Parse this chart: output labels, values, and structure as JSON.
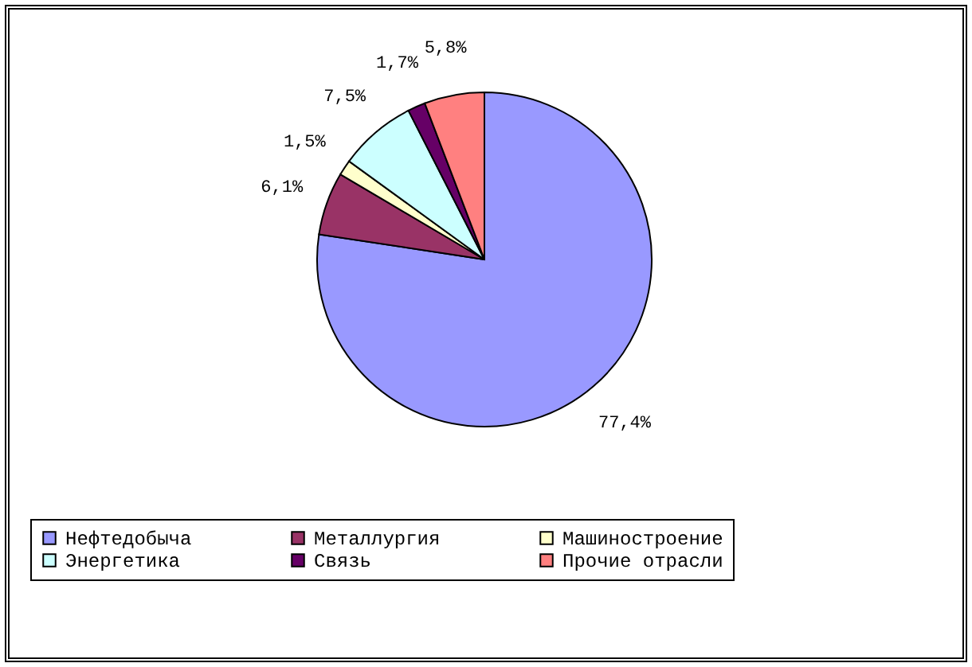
{
  "chart_data": {
    "type": "pie",
    "categories": [
      "Нефтедобыча",
      "Металлургия",
      "Машиностроение",
      "Энергетика",
      "Связь",
      "Прочие отрасли"
    ],
    "values": [
      77.4,
      6.1,
      1.5,
      7.5,
      1.7,
      5.8
    ],
    "colors": [
      "#9999ff",
      "#993366",
      "#ffffcc",
      "#ccffff",
      "#660066",
      "#ff8080"
    ],
    "value_labels": [
      "77,4%",
      "6,1%",
      "1,5%",
      "7,5%",
      "1,7%",
      "5,8%"
    ],
    "legend": "bottom"
  }
}
